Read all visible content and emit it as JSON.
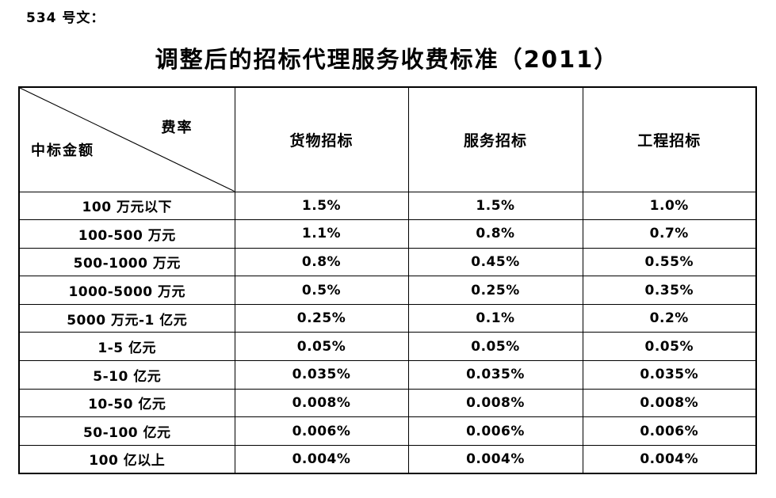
{
  "doc_label": "534 号文：",
  "title": "调整后的招标代理服务收费标准（2011）",
  "colors": {
    "text": "#000000",
    "border": "#000000",
    "background": "#ffffff"
  },
  "table": {
    "corner": {
      "top_right": "费率",
      "bottom_left": "中标金额"
    },
    "columns": [
      "货物招标",
      "服务招标",
      "工程招标"
    ],
    "rows": [
      {
        "label": "100 万元以下",
        "values": [
          "1.5%",
          "1.5%",
          "1.0%"
        ]
      },
      {
        "label": "100-500 万元",
        "values": [
          "1.1%",
          "0.8%",
          "0.7%"
        ]
      },
      {
        "label": "500-1000 万元",
        "values": [
          "0.8%",
          "0.45%",
          "0.55%"
        ]
      },
      {
        "label": "1000-5000 万元",
        "values": [
          "0.5%",
          "0.25%",
          "0.35%"
        ]
      },
      {
        "label": "5000 万元-1 亿元",
        "values": [
          "0.25%",
          "0.1%",
          "0.2%"
        ]
      },
      {
        "label": "1-5 亿元",
        "values": [
          "0.05%",
          "0.05%",
          "0.05%"
        ]
      },
      {
        "label": "5-10 亿元",
        "values": [
          "0.035%",
          "0.035%",
          "0.035%"
        ]
      },
      {
        "label": "10-50 亿元",
        "values": [
          "0.008%",
          "0.008%",
          "0.008%"
        ]
      },
      {
        "label": "50-100 亿元",
        "values": [
          "0.006%",
          "0.006%",
          "0.006%"
        ]
      },
      {
        "label": "100 亿以上",
        "values": [
          "0.004%",
          "0.004%",
          "0.004%"
        ]
      }
    ]
  }
}
